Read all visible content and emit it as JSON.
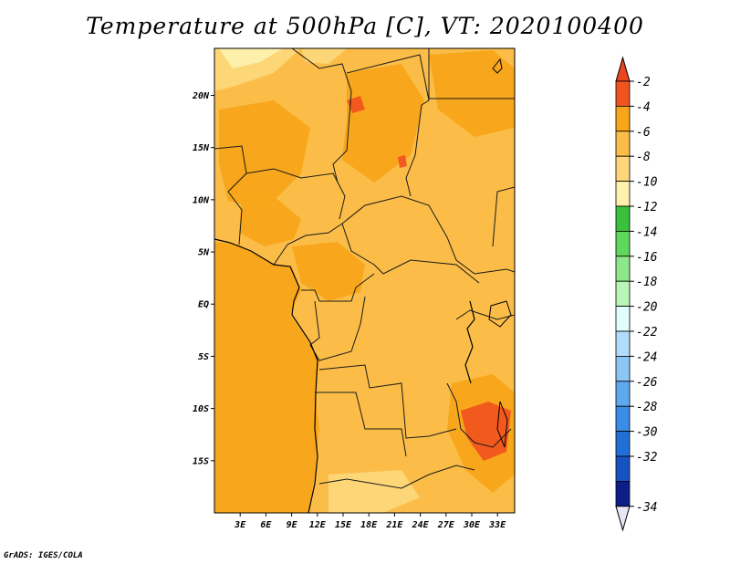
{
  "title": "Temperature at 500hPa [C], VT: 2020100400",
  "credit": "GrADS: IGES/COLA",
  "map": {
    "lat_labels": [
      {
        "text": "20N",
        "lat": 20
      },
      {
        "text": "15N",
        "lat": 15
      },
      {
        "text": "10N",
        "lat": 10
      },
      {
        "text": "5N",
        "lat": 5
      },
      {
        "text": "EQ",
        "lat": 0
      },
      {
        "text": "5S",
        "lat": -5
      },
      {
        "text": "10S",
        "lat": -10
      },
      {
        "text": "15S",
        "lat": -15
      }
    ],
    "lon_labels": [
      {
        "text": "3E",
        "lon": 3
      },
      {
        "text": "6E",
        "lon": 6
      },
      {
        "text": "9E",
        "lon": 9
      },
      {
        "text": "12E",
        "lon": 12
      },
      {
        "text": "15E",
        "lon": 15
      },
      {
        "text": "18E",
        "lon": 18
      },
      {
        "text": "21E",
        "lon": 21
      },
      {
        "text": "24E",
        "lon": 24
      },
      {
        "text": "27E",
        "lon": 27
      },
      {
        "text": "30E",
        "lon": 30
      },
      {
        "text": "33E",
        "lon": 33
      }
    ],
    "lon_range": [
      0,
      35
    ],
    "lat_range": [
      -20,
      24.5
    ],
    "base_color": "#fbbd48",
    "ocean_color": "#f8a51a"
  },
  "colorbar": {
    "labels": [
      "-2",
      "-4",
      "-6",
      "-8",
      "-10",
      "-12",
      "-14",
      "-16",
      "-18",
      "-20",
      "-22",
      "-24",
      "-26",
      "-28",
      "-30",
      "-32",
      "-34"
    ],
    "colors": [
      "#f0541e",
      "#f8a51a",
      "#fbbd48",
      "#fdd77a",
      "#fdf1ad",
      "#39c13d",
      "#5fd65c",
      "#8ee68a",
      "#b9f5b6",
      "#e2fdfd",
      "#b2dcfb",
      "#8cc6f5",
      "#5eaaee",
      "#3a8de6",
      "#2170d8",
      "#1752c2",
      "#0e1e88"
    ],
    "top_color": "#e8461e",
    "bottom_color": "#e8e6f6"
  }
}
